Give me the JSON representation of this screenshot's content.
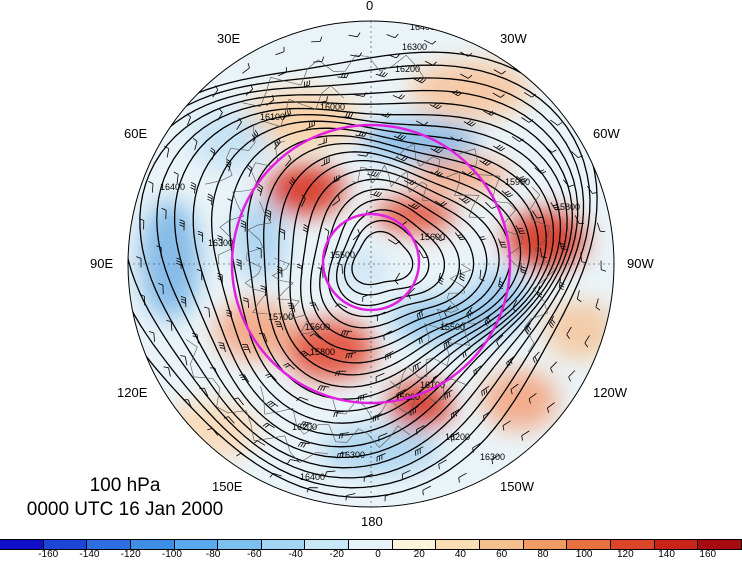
{
  "caption": {
    "level": "100 hPa",
    "time": "0000 UTC 16 Jan 2000"
  },
  "longitude_labels": [
    {
      "key": "0",
      "text": "0"
    },
    {
      "key": "30W",
      "text": "30W"
    },
    {
      "key": "60W",
      "text": "60W"
    },
    {
      "key": "90W",
      "text": "90W"
    },
    {
      "key": "120W",
      "text": "120W"
    },
    {
      "key": "150W",
      "text": "150W"
    },
    {
      "key": "180",
      "text": "180"
    },
    {
      "key": "150E",
      "text": "150E"
    },
    {
      "key": "120E",
      "text": "120E"
    },
    {
      "key": "90E",
      "text": "90E"
    },
    {
      "key": "60E",
      "text": "60E"
    },
    {
      "key": "30E",
      "text": "30E"
    }
  ],
  "contour_labels": [
    "16400",
    "16300",
    "16200",
    "16100",
    "16000",
    "15900",
    "15800",
    "15700",
    "15600",
    "15500"
  ],
  "colorbar": {
    "ticks": [
      "-160",
      "-140",
      "-120",
      "-100",
      "-80",
      "-60",
      "-40",
      "-20",
      "0",
      "20",
      "40",
      "60",
      "80",
      "100",
      "120",
      "140",
      "160"
    ],
    "colors": [
      "#1010c8",
      "#1e46d6",
      "#2d6ee0",
      "#3f8ee6",
      "#5aa9ec",
      "#7cc0f0",
      "#a2d5f4",
      "#c8e8f8",
      "#e6f4fa",
      "#fdf4dc",
      "#f9ddb4",
      "#f5c08c",
      "#f09a64",
      "#e97040",
      "#dc4628",
      "#c82418",
      "#a80c10"
    ]
  }
}
